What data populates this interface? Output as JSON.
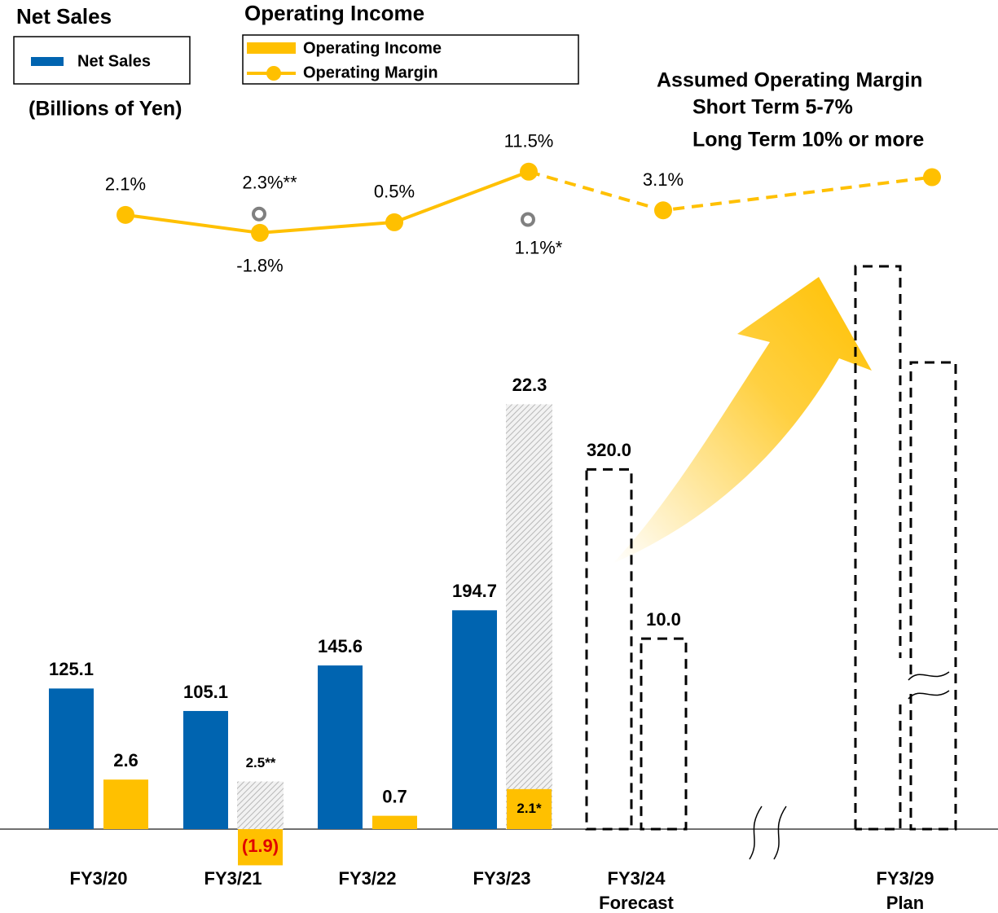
{
  "chart_data": {
    "type": "bar-line",
    "legend_titles": [
      "Net Sales",
      "Operating Income"
    ],
    "unit_note": "(Billions of Yen)",
    "annotation": [
      "Assumed Operating Margin",
      "Short Term 5-7%",
      "Long Term 10% or more"
    ],
    "categories": [
      "FY3/20",
      "FY3/21",
      "FY3/22",
      "FY3/23",
      "FY3/24",
      "FY3/29"
    ],
    "category_notes": [
      null,
      null,
      null,
      null,
      "Forecast",
      "Plan"
    ],
    "dashed_from": 4,
    "ylim": [
      0,
      500
    ],
    "y2lim": [
      0,
      29.5
    ],
    "y3lim": [
      -5,
      15
    ],
    "series": [
      {
        "name": "Net Sales",
        "color": "#0064b0",
        "axis": "y",
        "values": [
          125.1,
          105.1,
          145.6,
          194.7,
          320.0,
          null
        ],
        "value_labels": [
          "125.1",
          "105.1",
          "145.6",
          "194.7",
          "320.0",
          null
        ]
      },
      {
        "name": "Operating Income",
        "color": "#ffc000",
        "axis": "y2",
        "values": [
          2.6,
          -1.9,
          0.7,
          2.1,
          10.0,
          null
        ],
        "value_labels": [
          "2.6",
          "(1.9)",
          "0.7",
          "2.1*",
          "10.0",
          null
        ]
      },
      {
        "color": "#c8c8c8",
        "axis": "y2",
        "values": [
          null,
          2.5,
          null,
          22.3,
          null,
          null
        ],
        "value_labels": [
          null,
          "2.5**",
          null,
          "22.3",
          null,
          null
        ]
      },
      {
        "name": "Operating Margin",
        "color": "#ffc000",
        "axis": "y3",
        "values": [
          2.1,
          -1.8,
          0.5,
          11.5,
          3.1,
          10.3
        ],
        "value_labels": [
          "2.1%",
          "-1.8%",
          "0.5%",
          "11.5%",
          "3.1%",
          null
        ]
      },
      {
        "color": "#808080",
        "axis": "y3",
        "values": [
          null,
          2.3,
          null,
          1.1,
          null,
          null
        ],
        "value_labels": [
          null,
          "2.3%**",
          null,
          "1.1%*",
          null,
          null
        ]
      }
    ]
  }
}
